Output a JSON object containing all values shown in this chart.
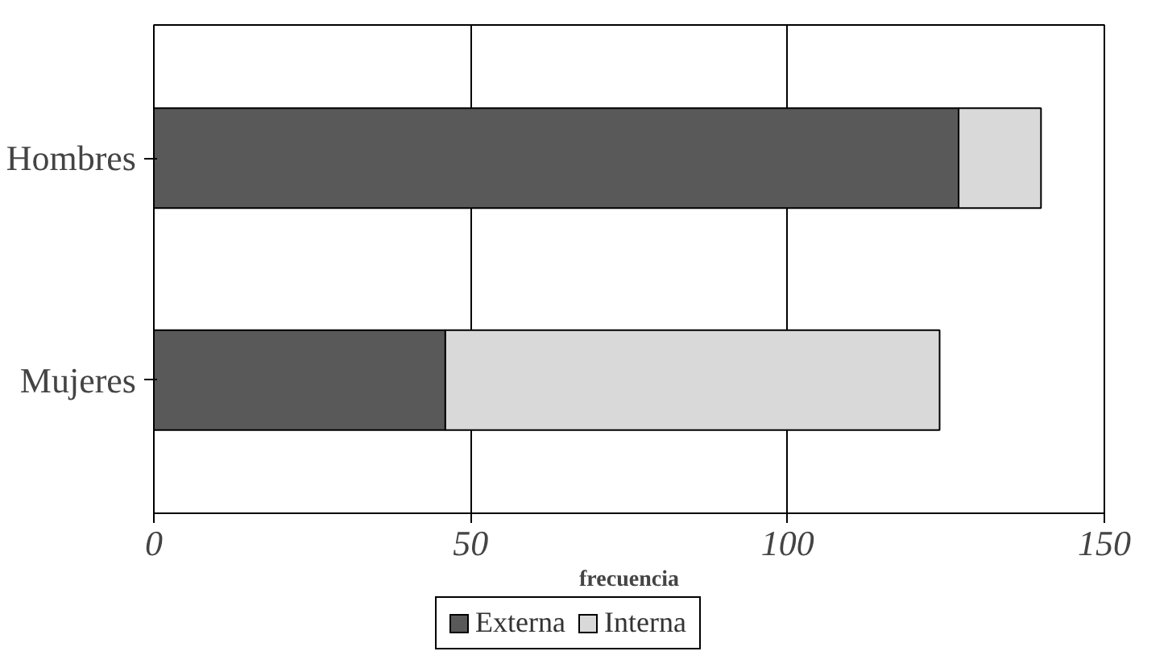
{
  "chart_data": {
    "type": "bar",
    "orientation": "horizontal",
    "stacked": true,
    "categories": [
      "Hombres",
      "Mujeres"
    ],
    "series": [
      {
        "name": "Externa",
        "color": "#595959",
        "values": [
          127,
          46
        ]
      },
      {
        "name": "Interna",
        "color": "#d9d9d9",
        "values": [
          13,
          78
        ]
      }
    ],
    "xlabel": "frecuencia",
    "xlim": [
      0,
      150
    ],
    "xticks": [
      0,
      50,
      100,
      150
    ],
    "grid": "x",
    "legend": "bottom"
  }
}
